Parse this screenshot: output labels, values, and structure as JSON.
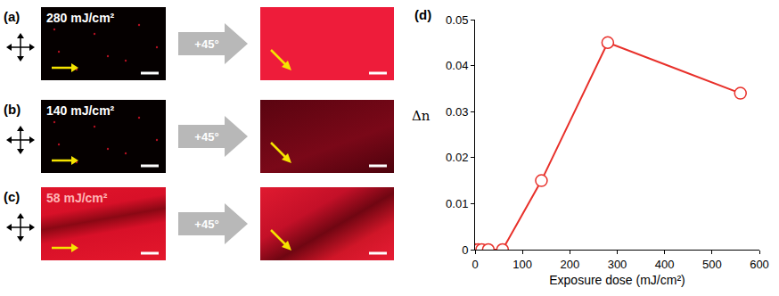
{
  "panels": [
    {
      "label": "(a)",
      "dose": "280 mJ/cm²",
      "rotation": "+45°"
    },
    {
      "label": "(b)",
      "dose": "140 mJ/cm²",
      "rotation": "+45°"
    },
    {
      "label": "(c)",
      "dose": "58 mJ/cm²",
      "rotation": "+45°"
    }
  ],
  "chart_data": {
    "type": "line",
    "title": "(d)",
    "x_label": "Exposure dose (mJ/cm²)",
    "y_label": "Δn",
    "x": [
      0,
      7,
      14,
      28,
      58,
      140,
      280,
      560
    ],
    "series": [
      {
        "name": "Δn",
        "color": "#e8302a",
        "marker": "open circle",
        "values": [
          0,
          0,
          0,
          0,
          0,
          0.015,
          0.045,
          0.034
        ]
      }
    ],
    "xlim": [
      0,
      600
    ],
    "xticks": [
      0,
      100,
      200,
      300,
      400,
      500,
      600
    ],
    "ylim": [
      0,
      0.05
    ],
    "yticks": [
      0,
      0.01,
      0.02,
      0.03,
      0.04,
      0.05
    ],
    "grid": false
  }
}
